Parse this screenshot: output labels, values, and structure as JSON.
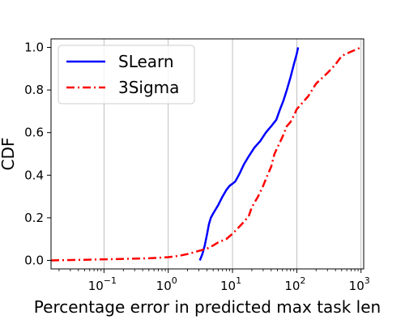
{
  "chart_data": {
    "type": "line",
    "title": "",
    "xlabel": "Percentage error in predicted max task len",
    "ylabel": "CDF",
    "xscale": "log",
    "xlim": [
      0.015,
      1100
    ],
    "ylim": [
      -0.04,
      1.04
    ],
    "grid": "x-major",
    "legend_position": "top-left",
    "x_ticks": [
      {
        "base": "10",
        "exp": "−1",
        "value": 0.1
      },
      {
        "base": "10",
        "exp": "0",
        "value": 1
      },
      {
        "base": "10",
        "exp": "1",
        "value": 10
      },
      {
        "base": "10",
        "exp": "2",
        "value": 100
      },
      {
        "base": "10",
        "exp": "3",
        "value": 1000
      }
    ],
    "y_ticks": [
      "0.0",
      "0.2",
      "0.4",
      "0.6",
      "0.8",
      "1.0"
    ],
    "series": [
      {
        "name": "SLearn",
        "color": "#0000ff",
        "style": "solid",
        "x": [
          3.1,
          3.4,
          3.7,
          4.0,
          4.3,
          4.6,
          5.0,
          6.0,
          7.0,
          8.0,
          9.0,
          10.0,
          11.0,
          12.0,
          13.0,
          15.0,
          18.0,
          22.0,
          27.0,
          33.0,
          40.0,
          48.0,
          55.0,
          62.0,
          70.0,
          80.0,
          90.0,
          100.0,
          105.0
        ],
        "y": [
          0.0,
          0.03,
          0.07,
          0.12,
          0.17,
          0.2,
          0.22,
          0.26,
          0.3,
          0.33,
          0.35,
          0.36,
          0.37,
          0.39,
          0.41,
          0.45,
          0.49,
          0.53,
          0.56,
          0.6,
          0.63,
          0.66,
          0.71,
          0.75,
          0.8,
          0.86,
          0.92,
          0.97,
          1.0
        ]
      },
      {
        "name": "3Sigma",
        "color": "#ff0000",
        "style": "dashdot",
        "x": [
          0.015,
          0.05,
          0.1,
          0.2,
          0.5,
          1.0,
          1.5,
          2.0,
          2.5,
          3.0,
          4.0,
          5.0,
          6.0,
          8.0,
          10.0,
          12.0,
          15.0,
          18.0,
          20.0,
          25.0,
          30.0,
          35.0,
          40.0,
          45.0,
          50.0,
          60.0,
          70.0,
          80.0,
          90.0,
          100.0,
          150.0,
          200.0,
          300.0,
          400.0,
          500.0,
          700.0,
          1000.0
        ],
        "y": [
          0.0,
          0.003,
          0.005,
          0.007,
          0.01,
          0.015,
          0.022,
          0.03,
          0.038,
          0.045,
          0.055,
          0.07,
          0.085,
          0.1,
          0.125,
          0.15,
          0.18,
          0.21,
          0.25,
          0.3,
          0.35,
          0.4,
          0.44,
          0.5,
          0.53,
          0.58,
          0.63,
          0.65,
          0.68,
          0.71,
          0.77,
          0.83,
          0.88,
          0.92,
          0.96,
          0.98,
          1.0
        ]
      }
    ]
  }
}
